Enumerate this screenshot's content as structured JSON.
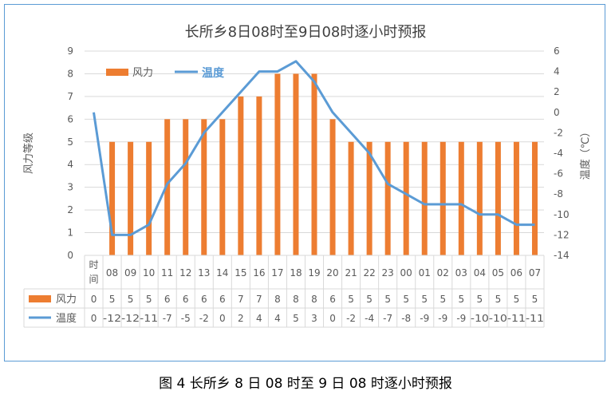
{
  "caption": "图 4 长所乡 8 日 08 时至 9 日 08 时逐小时预报",
  "colors": {
    "wind": "#ed7d31",
    "temp": "#5b9bd5",
    "grid": "#d9d9d9",
    "text": "#595959",
    "frame": "#5b9bd5"
  },
  "chart_data": {
    "type": "bar+line",
    "title": "长所乡8日08时至9日08时逐小时预报",
    "time_header": "时间",
    "categories": [
      "08",
      "09",
      "10",
      "11",
      "12",
      "13",
      "14",
      "15",
      "16",
      "17",
      "18",
      "19",
      "20",
      "21",
      "22",
      "23",
      "00",
      "01",
      "02",
      "03",
      "04",
      "05",
      "06",
      "07"
    ],
    "y_left": {
      "label": "风力等级",
      "min": 0,
      "max": 9,
      "step": 1,
      "ticks": [
        "0",
        "1",
        "2",
        "3",
        "4",
        "5",
        "6",
        "7",
        "8",
        "9"
      ]
    },
    "y_right": {
      "label": "温度（℃）",
      "min": -14,
      "max": 6,
      "step": 2,
      "ticks": [
        "-14",
        "-12",
        "-10",
        "-8",
        "-6",
        "-4",
        "-2",
        "0",
        "2",
        "4",
        "6"
      ]
    },
    "series": [
      {
        "name": "风力",
        "type": "bar",
        "axis": "left",
        "first_value": 0,
        "values": [
          5,
          5,
          5,
          6,
          6,
          6,
          6,
          7,
          7,
          8,
          8,
          8,
          6,
          5,
          5,
          5,
          5,
          5,
          5,
          5,
          5,
          5,
          5,
          5
        ],
        "table_first": "0",
        "table_values": [
          "5",
          "5",
          "5",
          "6",
          "6",
          "6",
          "6",
          "7",
          "7",
          "8",
          "8",
          "8",
          "6",
          "5",
          "5",
          "5",
          "5",
          "5",
          "5",
          "5",
          "5",
          "5",
          "5",
          "5"
        ]
      },
      {
        "name": "温度",
        "type": "line",
        "axis": "right",
        "first_value": 0,
        "values": [
          -12,
          -12,
          -11,
          -7,
          -5,
          -2,
          0,
          2,
          4,
          4,
          5,
          3,
          0,
          -2,
          -4,
          -7,
          -8,
          -9,
          -9,
          -9,
          -10,
          -10,
          -11,
          -11
        ],
        "table_first": "0",
        "table_values": [
          "-12",
          "-12",
          "-11",
          "-7",
          "-5",
          "-2",
          "0",
          "2",
          "4",
          "4",
          "5",
          "3",
          "0",
          "-2",
          "-4",
          "-7",
          "-8",
          "-9",
          "-9",
          "-9",
          "-10",
          "-10",
          "-11",
          "-11"
        ]
      }
    ],
    "legend": {
      "wind": "风力",
      "temp": "温度",
      "placement": "top-left"
    }
  }
}
